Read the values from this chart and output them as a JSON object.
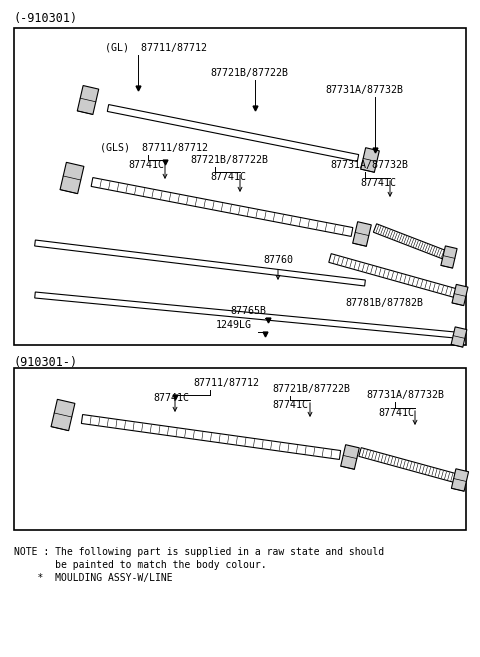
{
  "fig_w": 4.8,
  "fig_h": 6.57,
  "dpi": 100,
  "bg": "#ffffff",
  "title1": "(-910301)",
  "title2": "(910301-)",
  "note_line1": "NOTE : The following part is supplied in a raw state and should",
  "note_line2": "       be painted to match the body colour.",
  "note_line3": "    *  MOULDING ASSY-W/LINE",
  "font": "DejaVu Sans",
  "fs_title": 8.5,
  "fs_label": 7.2,
  "fs_note": 7.0
}
